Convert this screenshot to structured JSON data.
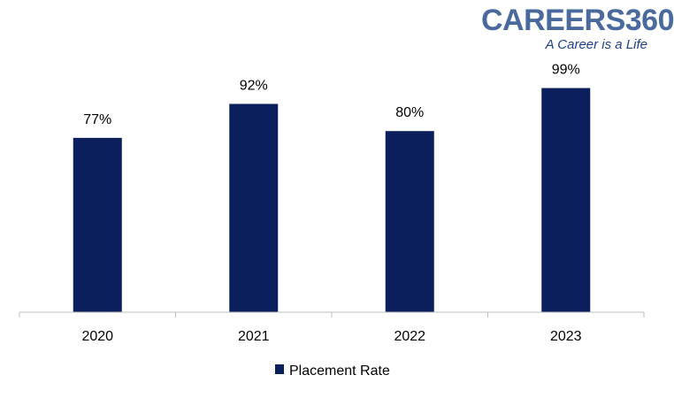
{
  "branding": {
    "logo_text": "CAREERS360",
    "tagline": "A Career is a Life"
  },
  "colors": {
    "bar": "#0b1f5c",
    "axis": "#bfbfbf",
    "logo": "#4a6a9e",
    "tagline": "#1c3f8c"
  },
  "chart_data": {
    "type": "bar",
    "categories": [
      "2020",
      "2021",
      "2022",
      "2023"
    ],
    "series": [
      {
        "name": "Placement Rate",
        "values": [
          77,
          92,
          80,
          99
        ],
        "value_labels": [
          "77%",
          "92%",
          "80%",
          "99%"
        ]
      }
    ],
    "title": "",
    "xlabel": "",
    "ylabel": "",
    "ylim": [
      0,
      100
    ],
    "grid": false,
    "legend": "bottom"
  }
}
